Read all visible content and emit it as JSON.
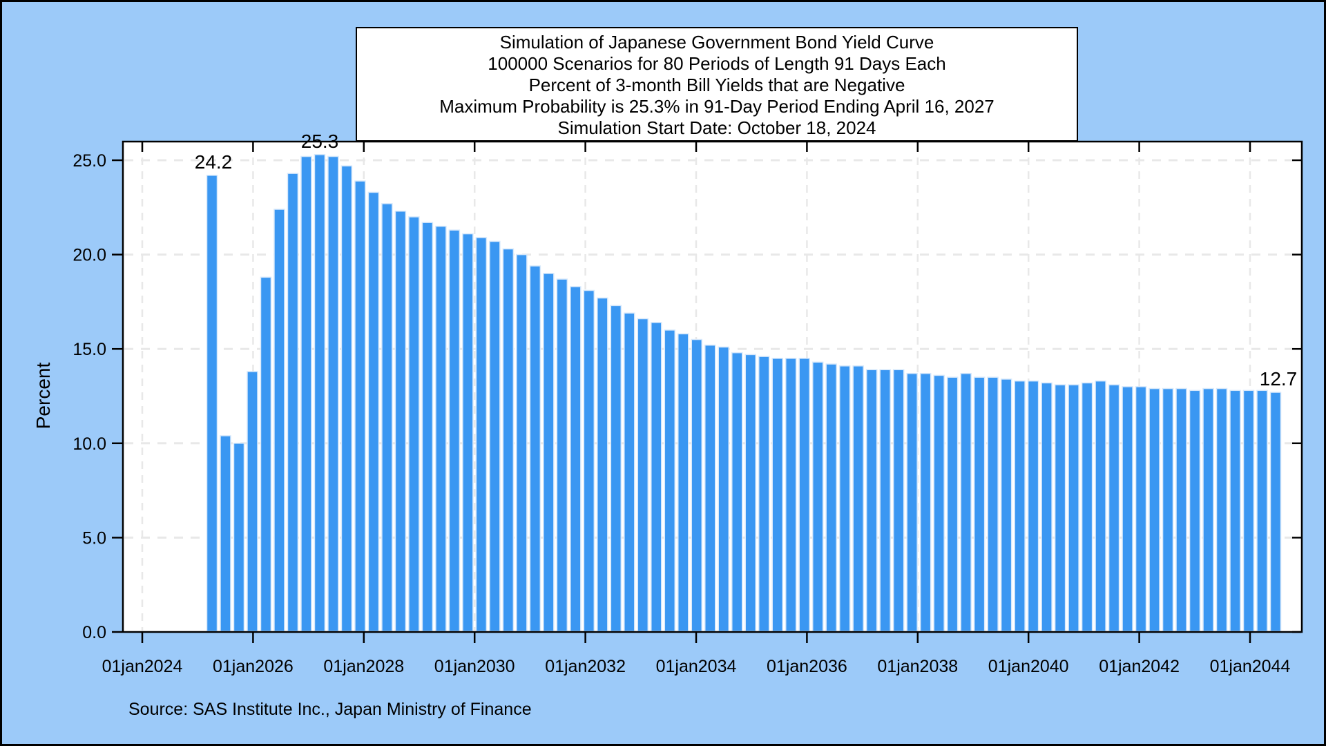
{
  "title": {
    "lines": [
      "Simulation of Japanese Government Bond Yield Curve",
      "100000 Scenarios for 80 Periods of Length 91 Days Each",
      "Percent of 3-month Bill Yields that are Negative",
      "Maximum Probability is 25.3% in 91-Day Period Ending April 16, 2027",
      "Simulation Start Date: October 18, 2024"
    ]
  },
  "y_axis": {
    "label": "Percent",
    "tick_labels": [
      "0.0",
      "5.0",
      "10.0",
      "15.0",
      "20.0",
      "25.0"
    ]
  },
  "x_axis": {
    "tick_labels": [
      "01jan2024",
      "01jan2026",
      "01jan2028",
      "01jan2030",
      "01jan2032",
      "01jan2034",
      "01jan2036",
      "01jan2038",
      "01jan2040",
      "01jan2042",
      "01jan2044"
    ]
  },
  "annotations": {
    "first_bar": "24.2",
    "peak": "25.3",
    "last_bar": "12.7"
  },
  "source_note": "Source: SAS Institute Inc., Japan Ministry of Finance",
  "colors": {
    "page_background": "#9ccaf9",
    "plot_background": "#ffffff",
    "bar_fill": "#3a97f2",
    "bar_stroke": "#d6e8fb",
    "gridline": "#e8e8e8",
    "axis": "#000000"
  },
  "chart_data": {
    "type": "bar",
    "title": "Simulation of Japanese Government Bond Yield Curve / 100000 Scenarios for 80 Periods of Length 91 Days Each / Percent of 3-month Bill Yields that are Negative / Maximum Probability is 25.3% in 91-Day Period Ending April 16, 2027 / Simulation Start Date: October 18, 2024",
    "xlabel": "",
    "ylabel": "Percent",
    "ylim": [
      0,
      25
    ],
    "y_ticks": [
      0,
      5,
      10,
      15,
      20,
      25
    ],
    "x_tick_labels": [
      "01jan2024",
      "01jan2026",
      "01jan2028",
      "01jan2030",
      "01jan2032",
      "01jan2034",
      "01jan2036",
      "01jan2038",
      "01jan2040",
      "01jan2042",
      "01jan2044"
    ],
    "grid": true,
    "legend_position": "none",
    "n_bars": 80,
    "values": [
      24.2,
      10.4,
      10.0,
      13.8,
      18.8,
      22.4,
      24.3,
      25.2,
      25.3,
      25.2,
      24.7,
      23.9,
      23.3,
      22.7,
      22.3,
      22.0,
      21.7,
      21.5,
      21.3,
      21.1,
      20.9,
      20.7,
      20.3,
      20.0,
      19.4,
      19.0,
      18.7,
      18.3,
      18.1,
      17.7,
      17.3,
      16.9,
      16.6,
      16.4,
      16.0,
      15.8,
      15.5,
      15.2,
      15.1,
      14.8,
      14.7,
      14.6,
      14.5,
      14.5,
      14.5,
      14.3,
      14.2,
      14.1,
      14.1,
      13.9,
      13.9,
      13.9,
      13.7,
      13.7,
      13.6,
      13.5,
      13.7,
      13.5,
      13.5,
      13.4,
      13.3,
      13.3,
      13.2,
      13.1,
      13.1,
      13.2,
      13.3,
      13.1,
      13.0,
      13.0,
      12.9,
      12.9,
      12.9,
      12.8,
      12.9,
      12.9,
      12.8,
      12.8,
      12.8,
      12.7
    ],
    "bar_annotations": [
      {
        "bar_index": 1,
        "text": "24.2"
      },
      {
        "bar_index": 9,
        "text": "25.3"
      },
      {
        "bar_index": 80,
        "text": "12.7"
      }
    ]
  }
}
